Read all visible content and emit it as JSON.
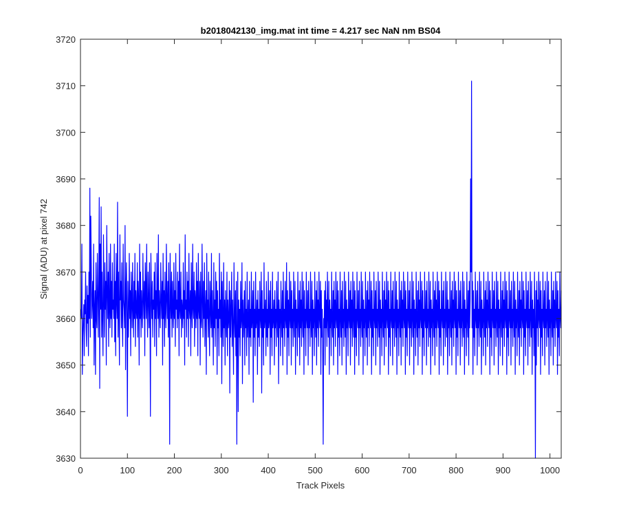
{
  "chart_data": {
    "type": "line",
    "title": "b2018042130_img.mat int time = 4.217 sec  NaN nm BS04",
    "xlabel": "Track Pixels",
    "ylabel": "Signal (ADU) at pixel 742",
    "xlim": [
      0,
      1024
    ],
    "ylim": [
      3630,
      3720
    ],
    "xticks": [
      0,
      100,
      200,
      300,
      400,
      500,
      600,
      700,
      800,
      900,
      1000
    ],
    "yticks": [
      3630,
      3640,
      3650,
      3660,
      3670,
      3680,
      3690,
      3700,
      3710,
      3720
    ],
    "grid": false,
    "series_color": "#0000ff",
    "series": [
      {
        "x_start": 1,
        "x_step": 1,
        "values_note": "",
        "values": [
          3662,
          3660,
          3676,
          3648,
          3656,
          3660,
          3663,
          3652,
          3664,
          3661,
          3670,
          3658,
          3654,
          3667,
          3659,
          3665,
          3652,
          3670,
          3660,
          3688,
          3656,
          3682,
          3672,
          3660,
          3664,
          3668,
          3658,
          3676,
          3650,
          3662,
          3666,
          3648,
          3672,
          3660,
          3658,
          3674,
          3666,
          3656,
          3668,
          3686,
          3645,
          3676,
          3662,
          3684,
          3656,
          3670,
          3660,
          3652,
          3678,
          3664,
          3656,
          3672,
          3662,
          3668,
          3650,
          3680,
          3666,
          3660,
          3670,
          3654,
          3674,
          3662,
          3658,
          3676,
          3660,
          3668,
          3656,
          3672,
          3662,
          3664,
          3660,
          3676,
          3655,
          3668,
          3652,
          3674,
          3664,
          3660,
          3685,
          3656,
          3670,
          3662,
          3650,
          3678,
          3664,
          3668,
          3658,
          3672,
          3660,
          3654,
          3676,
          3664,
          3662,
          3658,
          3680,
          3649,
          3666,
          3672,
          3660,
          3639,
          3668,
          3656,
          3662,
          3674,
          3660,
          3666,
          3652,
          3670,
          3664,
          3658,
          3672,
          3662,
          3656,
          3668,
          3660,
          3674,
          3654,
          3666,
          3662,
          3660,
          3672,
          3656,
          3668,
          3664,
          3650,
          3676,
          3660,
          3670,
          3656,
          3666,
          3662,
          3658,
          3674,
          3664,
          3660,
          3668,
          3652,
          3672,
          3666,
          3660,
          3676,
          3662,
          3656,
          3670,
          3664,
          3658,
          3672,
          3662,
          3648,
          3674,
          3666,
          3660,
          3668,
          3656,
          3664,
          3662,
          3670,
          3654,
          3672,
          3660,
          3666,
          3652,
          3674,
          3664,
          3660,
          3678,
          3656,
          3666,
          3662,
          3658,
          3672,
          3664,
          3660,
          3668,
          3650,
          3674,
          3660,
          3666,
          3654,
          3670,
          3662,
          3658,
          3676,
          3664,
          3660,
          3668,
          3656,
          3672,
          3662,
          3633,
          3674,
          3664,
          3660,
          3670,
          3656,
          3668,
          3662,
          3658,
          3672,
          3660,
          3666,
          3654,
          3674,
          3662,
          3664,
          3658,
          3670,
          3660,
          3668,
          3652,
          3676,
          3662,
          3660,
          3670,
          3656,
          3664,
          3662,
          3658,
          3672,
          3660,
          3666,
          3650,
          3678,
          3662,
          3664,
          3656,
          3670,
          3660,
          3668,
          3654,
          3674,
          3662,
          3660,
          3666,
          3652,
          3672,
          3662,
          3658,
          3676,
          3662,
          3660,
          3670,
          3654,
          3666,
          3664,
          3658,
          3672,
          3660,
          3668,
          3652,
          3674,
          3662,
          3660,
          3668,
          3650,
          3670,
          3660,
          3658,
          3676,
          3664,
          3656,
          3668,
          3660,
          3672,
          3654,
          3662,
          3666,
          3648,
          3674,
          3660,
          3664,
          3656,
          3670,
          3660,
          3652,
          3668,
          3662,
          3658,
          3674,
          3656,
          3666,
          3660,
          3650,
          3672,
          3658,
          3664,
          3654,
          3670,
          3660,
          3668,
          3648,
          3666,
          3658,
          3662,
          3652,
          3674,
          3660,
          3664,
          3656,
          3670,
          3646,
          3668,
          3660,
          3654,
          3672,
          3658,
          3664,
          3650,
          3666,
          3660,
          3656,
          3670,
          3652,
          3664,
          3658,
          3660,
          3668,
          3644,
          3666,
          3656,
          3662,
          3670,
          3654,
          3664,
          3658,
          3648,
          3672,
          3660,
          3656,
          3666,
          3652,
          3668,
          3660,
          3658,
          3670,
          3640,
          3664,
          3656,
          3662,
          3652,
          3668,
          3658,
          3660,
          3672,
          3646,
          3664,
          3656,
          3660,
          3666,
          3650,
          3668,
          3658,
          3662,
          3652,
          3670,
          3656,
          3660,
          3664,
          3648,
          3668,
          3656,
          3662,
          3654,
          3670,
          3658,
          3660,
          3666,
          3642,
          3668,
          3656,
          3662,
          3652,
          3670,
          3658,
          3660,
          3664,
          3648,
          3666,
          3656,
          3662,
          3654,
          3668,
          3660,
          3658,
          3670,
          3644,
          3666,
          3656,
          3662,
          3650,
          3672,
          3658,
          3660,
          3664,
          3652,
          3668,
          3656,
          3662,
          3654,
          3670,
          3658,
          3660,
          3666,
          3648,
          3668,
          3656,
          3662,
          3652,
          3670,
          3658,
          3660,
          3664,
          3650,
          3666,
          3658,
          3662,
          3654,
          3668,
          3660,
          3656,
          3670,
          3646,
          3664,
          3658,
          3662,
          3652,
          3668,
          3660,
          3656,
          3666,
          3650,
          3670,
          3658,
          3662,
          3654,
          3668,
          3660,
          3658,
          3672,
          3648,
          3666,
          3656,
          3664,
          3652,
          3670,
          3660,
          3658,
          3668,
          3650,
          3666,
          3658,
          3662,
          3654,
          3670,
          3660,
          3656,
          3668,
          3648,
          3664,
          3658,
          3662,
          3652,
          3670,
          3660,
          3656,
          3666,
          3650,
          3668,
          3658,
          3664,
          3654,
          3670,
          3660,
          3656,
          3668,
          3648,
          3666,
          3658,
          3662,
          3652,
          3670,
          3660,
          3658,
          3666,
          3650,
          3668,
          3658,
          3662,
          3654,
          3670,
          3660,
          3656,
          3668,
          3648,
          3664,
          3658,
          3662,
          3652,
          3670,
          3660,
          3656,
          3666,
          3650,
          3668,
          3658,
          3664,
          3654,
          3670,
          3660,
          3658,
          3668,
          3648,
          3666,
          3656,
          3662,
          3652,
          3670,
          3660,
          3658,
          3666,
          3650,
          3668,
          3658,
          3664,
          3654,
          3670,
          3660,
          3656,
          3668,
          3648,
          3664,
          3658,
          3662,
          3652,
          3670,
          3660,
          3656,
          3666,
          3650,
          3668,
          3658,
          3664,
          3654,
          3670,
          3660,
          3658,
          3668,
          3648,
          3666,
          3656,
          3662,
          3652,
          3670,
          3660,
          3656,
          3666,
          3650,
          3668,
          3658,
          3662,
          3654,
          3670,
          3660,
          3656,
          3668,
          3648,
          3664,
          3658,
          3662,
          3652,
          3670,
          3660,
          3658,
          3666,
          3650,
          3668,
          3658,
          3664,
          3654,
          3670,
          3660,
          3656,
          3668,
          3648,
          3666,
          3656,
          3662,
          3652,
          3670,
          3660,
          3658,
          3666,
          3650,
          3668,
          3658,
          3662,
          3654,
          3670,
          3660,
          3656,
          3668,
          3648,
          3664,
          3658,
          3662,
          3652,
          3670,
          3660,
          3656,
          3666,
          3650,
          3668,
          3658,
          3664,
          3654,
          3670,
          3660,
          3658,
          3668,
          3648,
          3666,
          3656,
          3662,
          3652,
          3670,
          3660,
          3658,
          3666,
          3650,
          3668,
          3658,
          3662,
          3654,
          3670,
          3660,
          3656,
          3668,
          3648,
          3664,
          3658,
          3662,
          3652,
          3670,
          3660,
          3656,
          3666,
          3650,
          3668,
          3658,
          3664,
          3654,
          3670,
          3660,
          3658,
          3668,
          3648,
          3666,
          3656,
          3662,
          3652,
          3670,
          3660,
          3658,
          3666,
          3650,
          3668,
          3658,
          3662,
          3654,
          3670,
          3660,
          3656,
          3668,
          3648,
          3664,
          3658,
          3662,
          3652,
          3670,
          3660,
          3656,
          3666,
          3650,
          3668,
          3658,
          3664,
          3654,
          3670,
          3660,
          3658,
          3668,
          3648,
          3666,
          3656,
          3662,
          3652,
          3670,
          3660,
          3658,
          3666,
          3650,
          3668,
          3658,
          3662,
          3654,
          3670,
          3660,
          3656,
          3668,
          3648,
          3664,
          3658,
          3662,
          3652,
          3670,
          3660,
          3656,
          3666,
          3650,
          3668,
          3658,
          3664,
          3654,
          3670,
          3660,
          3658,
          3668,
          3648,
          3666,
          3656,
          3662,
          3652,
          3670,
          3660,
          3658,
          3666,
          3650,
          3668,
          3658,
          3662,
          3654,
          3670,
          3660,
          3656,
          3668,
          3648,
          3664,
          3658,
          3662,
          3652,
          3670,
          3660,
          3656,
          3666,
          3650,
          3668,
          3658,
          3664,
          3654,
          3670,
          3660,
          3658,
          3668,
          3648,
          3666,
          3656,
          3662,
          3652,
          3670,
          3660,
          3658,
          3666,
          3650,
          3668,
          3658,
          3662,
          3654,
          3670,
          3660,
          3656,
          3668,
          3648,
          3664,
          3658,
          3662,
          3652,
          3670,
          3660,
          3656,
          3666,
          3650,
          3668,
          3658,
          3664,
          3654,
          3670,
          3660,
          3658,
          3668,
          3648,
          3666,
          3656,
          3662,
          3652,
          3670,
          3660,
          3658,
          3666,
          3650,
          3668,
          3658,
          3662,
          3654,
          3670,
          3660,
          3656,
          3668,
          3648,
          3664,
          3658,
          3662,
          3652,
          3670,
          3660,
          3656,
          3666,
          3650,
          3668,
          3658,
          3664,
          3654,
          3670,
          3660,
          3658,
          3668,
          3648,
          3666,
          3656,
          3662,
          3652,
          3670,
          3660,
          3658,
          3666,
          3650,
          3668,
          3658,
          3662,
          3654,
          3670,
          3660,
          3656,
          3668,
          3648,
          3664,
          3658,
          3662,
          3652,
          3670,
          3660,
          3656,
          3666,
          3650,
          3668,
          3658,
          3664,
          3654,
          3670,
          3660,
          3658,
          3668,
          3648,
          3666,
          3656,
          3662,
          3652,
          3670,
          3660,
          3658,
          3666,
          3650,
          3668,
          3658,
          3662,
          3654,
          3670,
          3660,
          3656,
          3668,
          3648,
          3664,
          3658,
          3662,
          3652,
          3670,
          3660,
          3656,
          3666,
          3650,
          3668,
          3658,
          3664,
          3654,
          3670,
          3660,
          3658,
          3668,
          3648,
          3666,
          3656,
          3662,
          3652,
          3670,
          3660,
          3658,
          3666,
          3650,
          3668,
          3658,
          3662,
          3654,
          3670,
          3660,
          3656,
          3668,
          3648,
          3664,
          3658,
          3662,
          3652,
          3670,
          3660,
          3656,
          3666,
          3650,
          3668,
          3658,
          3664,
          3654,
          3670,
          3660,
          3658,
          3668,
          3648,
          3666,
          3656,
          3662,
          3652,
          3670,
          3660,
          3658,
          3666,
          3650,
          3668,
          3658,
          3662,
          3654,
          3670,
          3660,
          3656,
          3668,
          3648,
          3664,
          3658,
          3662,
          3652,
          3670,
          3660,
          3656,
          3666,
          3650,
          3668,
          3658,
          3664,
          3654,
          3670,
          3660,
          3658,
          3668,
          3648,
          3666,
          3656,
          3662,
          3652,
          3670,
          3660,
          3658,
          3666,
          3650,
          3668,
          3658,
          3662,
          3654,
          3670,
          3660,
          3656,
          3668,
          3648,
          3664,
          3658,
          3662,
          3652,
          3670,
          3660,
          3656,
          3666,
          3650,
          3668,
          3658,
          3664,
          3654,
          3670,
          3660,
          3658,
          3668,
          3648,
          3666,
          3656,
          3662,
          3652,
          3670,
          3660,
          3658,
          3666,
          3650,
          3668,
          3658,
          3662,
          3654,
          3670,
          3660,
          3656,
          3668,
          3648,
          3664,
          3658,
          3662,
          3652,
          3670,
          3660,
          3656,
          3666,
          3650,
          3668,
          3658,
          3664,
          3654,
          3670,
          3660,
          3658,
          3668,
          3648,
          3666,
          3656,
          3662,
          3652,
          3670,
          3660,
          3658,
          3666,
          3650,
          3668,
          3658,
          3662,
          3654,
          3670,
          3660,
          3656,
          3668,
          3648,
          3664,
          3658,
          3662,
          3652,
          3670,
          3660,
          3656,
          3666,
          3650,
          3668,
          3658,
          3664,
          3654,
          3670,
          3660,
          3658,
          3668
        ]
      }
    ],
    "annotations": [
      {
        "x": 833,
        "y": 3711,
        "label": ""
      },
      {
        "x": 831,
        "y": 3690,
        "label": ""
      },
      {
        "x": 969,
        "y": 3630,
        "label": ""
      },
      {
        "x": 333,
        "y": 3633,
        "label": ""
      },
      {
        "x": 149,
        "y": 3639,
        "label": ""
      },
      {
        "x": 517,
        "y": 3633,
        "label": ""
      }
    ]
  }
}
